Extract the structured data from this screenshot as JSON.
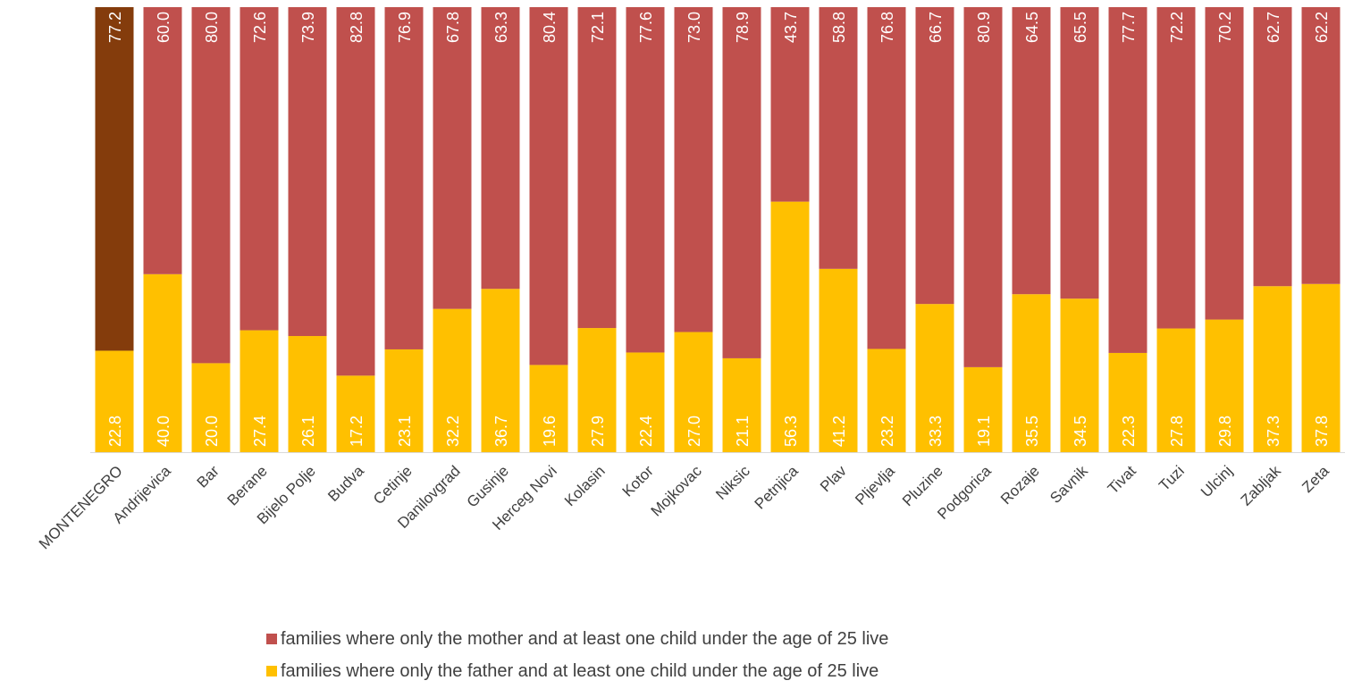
{
  "chart_data": {
    "type": "bar",
    "stacked": true,
    "percent_stacked": true,
    "categories": [
      "MONTENEGRO",
      "Andrijevica",
      "Bar",
      "Berane",
      "Bijelo Polje",
      "Budva",
      "Cetinje",
      "Danilovgrad",
      "Gusinje",
      "Herceg Novi",
      "Kolasin",
      "Kotor",
      "Mojkovac",
      "Niksic",
      "Petnjica",
      "Plav",
      "Pljevlja",
      "Pluzine",
      "Podgorica",
      "Rozaje",
      "Savnik",
      "Tivat",
      "Tuzi",
      "Ulcinj",
      "Zabljak",
      "Zeta"
    ],
    "series": [
      {
        "name": "families where only the father and at least one child under the age of 25 live",
        "color": "#FFC000",
        "highlight_color": "#FFC000",
        "values": [
          22.8,
          40.0,
          20.0,
          27.4,
          26.1,
          17.2,
          23.1,
          32.2,
          36.7,
          19.6,
          27.9,
          22.4,
          27.0,
          21.1,
          56.3,
          41.2,
          23.2,
          33.3,
          19.1,
          35.5,
          34.5,
          22.3,
          27.8,
          29.8,
          37.3,
          37.8
        ],
        "labels": [
          "22.8",
          "40.0",
          "20.0",
          "27.4",
          "26.1",
          "17.2",
          "23.1",
          "32.2",
          "36.7",
          "19.6",
          "27.9",
          "22.4",
          "27.0",
          "21.1",
          "56.3",
          "41.2",
          "23.2",
          "33.3",
          "19.1",
          "35.5",
          "34.5",
          "22.3",
          "27.8",
          "29.8",
          "37.3",
          "37.8"
        ]
      },
      {
        "name": "families where only the mother and at least one child under the age of 25 live",
        "color": "#C0504D",
        "highlight_color": "#843C0C",
        "values": [
          77.2,
          60.0,
          80.0,
          72.6,
          73.9,
          82.8,
          76.9,
          67.8,
          63.3,
          80.4,
          72.1,
          77.6,
          73.0,
          78.9,
          43.7,
          58.8,
          76.8,
          66.7,
          80.9,
          64.5,
          65.5,
          77.7,
          72.2,
          70.2,
          62.7,
          62.2
        ],
        "labels": [
          "77.2",
          "60.0",
          "80.0",
          "72.6",
          "73.9",
          "82.8",
          "76.9",
          "67.8",
          "63.3",
          "80.4",
          "72.1",
          "77.6",
          "73.0",
          "78.9",
          "43.7",
          "58.8",
          "76.8",
          "66.7",
          "80.9",
          "64.5",
          "65.5",
          "77.7",
          "72.2",
          "70.2",
          "62.7",
          "62.2"
        ]
      }
    ],
    "highlight_category_index": 0,
    "ylim": [
      0,
      100
    ],
    "grid": false,
    "axis_color": "#D9D9D9",
    "label_color": "#FFFFFF",
    "tick_label_color": "#404040",
    "legend": {
      "position": "bottom",
      "entries": [
        "families where only the mother and at least one child under the age of 25 live",
        "families where only the father and at least one child under the age of 25 live"
      ],
      "entry_series_index": [
        1,
        0
      ]
    }
  }
}
